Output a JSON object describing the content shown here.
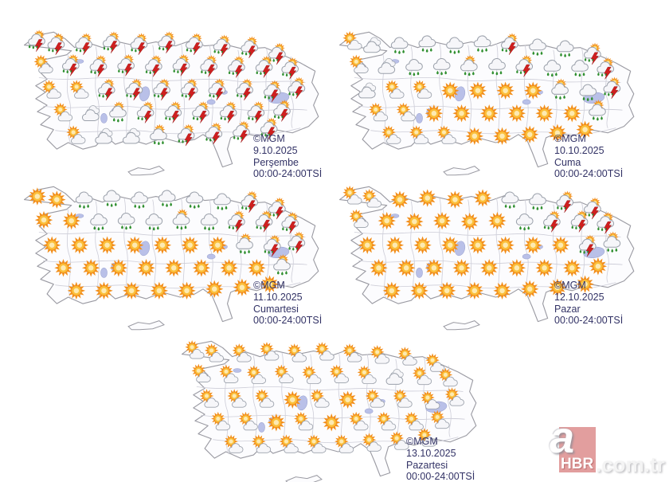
{
  "source": {
    "agency": "MGM",
    "credit": "©MGM",
    "time_label": "00:00-24:00TSİ"
  },
  "watermark": {
    "letter": "a",
    "brand": "HBR",
    "suffix": ".com.tr",
    "box_color": "rgba(190,40,40,0.45)"
  },
  "colors": {
    "label_text": "#333366",
    "map_outline": "#9a9aa2",
    "province_line": "#c9c9d4",
    "lake_fill": "#b9c0e8",
    "sun_orange": "#f28f1c",
    "rain_green": "#2f8f2f",
    "bolt_red": "#d01f1f"
  },
  "icon_types": {
    "s": "sunny",
    "p": "partly-cloudy",
    "c": "cloudy",
    "r": "rain",
    "q": "sunny-showers",
    "t": "thunderstorm"
  },
  "maps": [
    {
      "id": "map-thursday",
      "credit": "©MGM",
      "date": "9.10.2025",
      "day": "Perşembe",
      "time": "00:00-24:00TSİ",
      "icons": [
        [
          38,
          26,
          "t"
        ],
        [
          62,
          30,
          "t"
        ],
        [
          96,
          30,
          "t"
        ],
        [
          130,
          28,
          "t"
        ],
        [
          164,
          30,
          "t"
        ],
        [
          198,
          28,
          "t"
        ],
        [
          232,
          30,
          "t"
        ],
        [
          266,
          32,
          "t"
        ],
        [
          300,
          34,
          "t"
        ],
        [
          334,
          42,
          "t"
        ],
        [
          46,
          55,
          "p"
        ],
        [
          80,
          56,
          "t"
        ],
        [
          114,
          57,
          "t"
        ],
        [
          148,
          56,
          "t"
        ],
        [
          182,
          57,
          "t"
        ],
        [
          216,
          56,
          "t"
        ],
        [
          250,
          57,
          "t"
        ],
        [
          284,
          58,
          "t"
        ],
        [
          318,
          58,
          "t"
        ],
        [
          350,
          60,
          "t"
        ],
        [
          56,
          86,
          "p"
        ],
        [
          90,
          86,
          "p"
        ],
        [
          124,
          86,
          "t"
        ],
        [
          158,
          86,
          "t"
        ],
        [
          192,
          86,
          "t"
        ],
        [
          226,
          86,
          "t"
        ],
        [
          260,
          86,
          "t"
        ],
        [
          294,
          86,
          "t"
        ],
        [
          328,
          88,
          "t"
        ],
        [
          358,
          84,
          "t"
        ],
        [
          70,
          114,
          "p"
        ],
        [
          104,
          114,
          "c"
        ],
        [
          138,
          114,
          "q"
        ],
        [
          172,
          114,
          "t"
        ],
        [
          206,
          114,
          "t"
        ],
        [
          240,
          114,
          "t"
        ],
        [
          274,
          114,
          "t"
        ],
        [
          308,
          114,
          "t"
        ],
        [
          340,
          112,
          "t"
        ],
        [
          86,
          142,
          "p"
        ],
        [
          120,
          142,
          "c"
        ],
        [
          154,
          142,
          "c"
        ],
        [
          188,
          142,
          "q"
        ],
        [
          222,
          142,
          "t"
        ],
        [
          256,
          140,
          "t"
        ],
        [
          290,
          138,
          "t"
        ],
        [
          324,
          134,
          "t"
        ]
      ]
    },
    {
      "id": "map-friday",
      "credit": "©MGM",
      "date": "10.10.2025",
      "day": "Cuma",
      "time": "00:00-24:00TSİ",
      "icons": [
        [
          38,
          26,
          "p"
        ],
        [
          62,
          30,
          "c"
        ],
        [
          96,
          30,
          "r"
        ],
        [
          130,
          28,
          "r"
        ],
        [
          164,
          30,
          "r"
        ],
        [
          198,
          28,
          "r"
        ],
        [
          232,
          30,
          "t"
        ],
        [
          266,
          32,
          "r"
        ],
        [
          300,
          34,
          "r"
        ],
        [
          334,
          42,
          "t"
        ],
        [
          46,
          55,
          "p"
        ],
        [
          80,
          56,
          "c"
        ],
        [
          114,
          57,
          "r"
        ],
        [
          148,
          56,
          "r"
        ],
        [
          182,
          57,
          "q"
        ],
        [
          216,
          56,
          "r"
        ],
        [
          250,
          57,
          "t"
        ],
        [
          284,
          58,
          "r"
        ],
        [
          318,
          58,
          "r"
        ],
        [
          350,
          60,
          "t"
        ],
        [
          56,
          86,
          "c"
        ],
        [
          90,
          86,
          "p"
        ],
        [
          124,
          86,
          "p"
        ],
        [
          158,
          86,
          "s"
        ],
        [
          192,
          86,
          "s"
        ],
        [
          226,
          86,
          "s"
        ],
        [
          260,
          86,
          "s"
        ],
        [
          294,
          86,
          "q"
        ],
        [
          328,
          88,
          "r"
        ],
        [
          358,
          84,
          "t"
        ],
        [
          70,
          114,
          "p"
        ],
        [
          104,
          114,
          "p"
        ],
        [
          138,
          114,
          "s"
        ],
        [
          172,
          114,
          "s"
        ],
        [
          206,
          114,
          "s"
        ],
        [
          240,
          114,
          "s"
        ],
        [
          274,
          114,
          "s"
        ],
        [
          308,
          114,
          "s"
        ],
        [
          340,
          112,
          "q"
        ],
        [
          86,
          142,
          "p"
        ],
        [
          120,
          142,
          "p"
        ],
        [
          154,
          142,
          "p"
        ],
        [
          188,
          142,
          "s"
        ],
        [
          222,
          142,
          "s"
        ],
        [
          256,
          140,
          "s"
        ],
        [
          290,
          138,
          "s"
        ],
        [
          324,
          134,
          "s"
        ]
      ]
    },
    {
      "id": "map-saturday",
      "credit": "©MGM",
      "date": "11.10.2025",
      "day": "Cumartesi",
      "time": "00:00-24:00TSİ",
      "icons": [
        [
          38,
          26,
          "s"
        ],
        [
          62,
          30,
          "s"
        ],
        [
          96,
          30,
          "r"
        ],
        [
          130,
          28,
          "r"
        ],
        [
          164,
          30,
          "r"
        ],
        [
          198,
          28,
          "r"
        ],
        [
          232,
          30,
          "r"
        ],
        [
          266,
          32,
          "r"
        ],
        [
          300,
          34,
          "t"
        ],
        [
          334,
          42,
          "t"
        ],
        [
          46,
          55,
          "s"
        ],
        [
          80,
          56,
          "s"
        ],
        [
          114,
          57,
          "r"
        ],
        [
          148,
          56,
          "r"
        ],
        [
          182,
          57,
          "r"
        ],
        [
          216,
          56,
          "q"
        ],
        [
          250,
          57,
          "r"
        ],
        [
          284,
          58,
          "t"
        ],
        [
          318,
          58,
          "t"
        ],
        [
          350,
          60,
          "t"
        ],
        [
          56,
          86,
          "s"
        ],
        [
          90,
          86,
          "s"
        ],
        [
          124,
          86,
          "s"
        ],
        [
          158,
          86,
          "s"
        ],
        [
          192,
          86,
          "s"
        ],
        [
          226,
          86,
          "s"
        ],
        [
          260,
          86,
          "s"
        ],
        [
          294,
          86,
          "q"
        ],
        [
          328,
          88,
          "t"
        ],
        [
          358,
          84,
          "t"
        ],
        [
          70,
          114,
          "s"
        ],
        [
          104,
          114,
          "s"
        ],
        [
          138,
          114,
          "s"
        ],
        [
          172,
          114,
          "s"
        ],
        [
          206,
          114,
          "s"
        ],
        [
          240,
          114,
          "s"
        ],
        [
          274,
          114,
          "s"
        ],
        [
          308,
          114,
          "s"
        ],
        [
          340,
          112,
          "q"
        ],
        [
          86,
          142,
          "s"
        ],
        [
          120,
          142,
          "s"
        ],
        [
          154,
          142,
          "s"
        ],
        [
          188,
          142,
          "s"
        ],
        [
          222,
          142,
          "s"
        ],
        [
          256,
          140,
          "s"
        ],
        [
          290,
          138,
          "s"
        ],
        [
          324,
          134,
          "s"
        ]
      ]
    },
    {
      "id": "map-sunday",
      "credit": "©MGM",
      "date": "12.10.2025",
      "day": "Pazar",
      "time": "00:00-24:00TSİ",
      "icons": [
        [
          38,
          26,
          "p"
        ],
        [
          62,
          30,
          "p"
        ],
        [
          96,
          30,
          "s"
        ],
        [
          130,
          28,
          "s"
        ],
        [
          164,
          30,
          "s"
        ],
        [
          198,
          28,
          "s"
        ],
        [
          232,
          30,
          "r"
        ],
        [
          266,
          32,
          "r"
        ],
        [
          300,
          34,
          "t"
        ],
        [
          334,
          42,
          "t"
        ],
        [
          46,
          55,
          "p"
        ],
        [
          80,
          56,
          "s"
        ],
        [
          114,
          57,
          "s"
        ],
        [
          148,
          56,
          "s"
        ],
        [
          182,
          57,
          "s"
        ],
        [
          216,
          56,
          "s"
        ],
        [
          250,
          57,
          "r"
        ],
        [
          284,
          58,
          "t"
        ],
        [
          318,
          58,
          "t"
        ],
        [
          350,
          60,
          "t"
        ],
        [
          56,
          86,
          "s"
        ],
        [
          90,
          86,
          "s"
        ],
        [
          124,
          86,
          "s"
        ],
        [
          158,
          86,
          "s"
        ],
        [
          192,
          86,
          "s"
        ],
        [
          226,
          86,
          "s"
        ],
        [
          260,
          86,
          "s"
        ],
        [
          294,
          86,
          "s"
        ],
        [
          328,
          88,
          "t"
        ],
        [
          358,
          84,
          "q"
        ],
        [
          70,
          114,
          "s"
        ],
        [
          104,
          114,
          "s"
        ],
        [
          138,
          114,
          "s"
        ],
        [
          172,
          114,
          "s"
        ],
        [
          206,
          114,
          "s"
        ],
        [
          240,
          114,
          "s"
        ],
        [
          274,
          114,
          "s"
        ],
        [
          308,
          114,
          "s"
        ],
        [
          340,
          112,
          "s"
        ],
        [
          86,
          142,
          "s"
        ],
        [
          120,
          142,
          "s"
        ],
        [
          154,
          142,
          "s"
        ],
        [
          188,
          142,
          "s"
        ],
        [
          222,
          142,
          "s"
        ],
        [
          256,
          140,
          "s"
        ],
        [
          290,
          138,
          "s"
        ],
        [
          324,
          134,
          "s"
        ]
      ]
    },
    {
      "id": "map-monday",
      "credit": "©MGM",
      "date": "13.10.2025",
      "day": "Pazartesi",
      "time": "00:00-24:00TSİ",
      "icons": [
        [
          38,
          26,
          "p"
        ],
        [
          62,
          30,
          "p"
        ],
        [
          96,
          30,
          "p"
        ],
        [
          130,
          28,
          "p"
        ],
        [
          164,
          30,
          "p"
        ],
        [
          198,
          28,
          "p"
        ],
        [
          232,
          30,
          "p"
        ],
        [
          266,
          32,
          "p"
        ],
        [
          300,
          34,
          "p"
        ],
        [
          334,
          42,
          "p"
        ],
        [
          46,
          55,
          "p"
        ],
        [
          80,
          56,
          "p"
        ],
        [
          114,
          57,
          "p"
        ],
        [
          148,
          56,
          "p"
        ],
        [
          182,
          57,
          "p"
        ],
        [
          216,
          56,
          "p"
        ],
        [
          250,
          57,
          "p"
        ],
        [
          284,
          58,
          "c"
        ],
        [
          318,
          58,
          "p"
        ],
        [
          350,
          60,
          "p"
        ],
        [
          56,
          86,
          "p"
        ],
        [
          90,
          86,
          "p"
        ],
        [
          124,
          86,
          "p"
        ],
        [
          158,
          86,
          "s"
        ],
        [
          192,
          86,
          "p"
        ],
        [
          226,
          86,
          "s"
        ],
        [
          260,
          86,
          "p"
        ],
        [
          294,
          86,
          "p"
        ],
        [
          328,
          88,
          "p"
        ],
        [
          358,
          84,
          "p"
        ],
        [
          70,
          114,
          "p"
        ],
        [
          104,
          114,
          "p"
        ],
        [
          138,
          114,
          "s"
        ],
        [
          172,
          114,
          "p"
        ],
        [
          206,
          114,
          "s"
        ],
        [
          240,
          114,
          "p"
        ],
        [
          274,
          114,
          "p"
        ],
        [
          308,
          114,
          "p"
        ],
        [
          340,
          112,
          "p"
        ],
        [
          86,
          142,
          "p"
        ],
        [
          120,
          142,
          "p"
        ],
        [
          154,
          142,
          "p"
        ],
        [
          188,
          142,
          "p"
        ],
        [
          222,
          142,
          "p"
        ],
        [
          256,
          140,
          "p"
        ],
        [
          290,
          138,
          "p"
        ],
        [
          324,
          134,
          "p"
        ]
      ]
    }
  ]
}
